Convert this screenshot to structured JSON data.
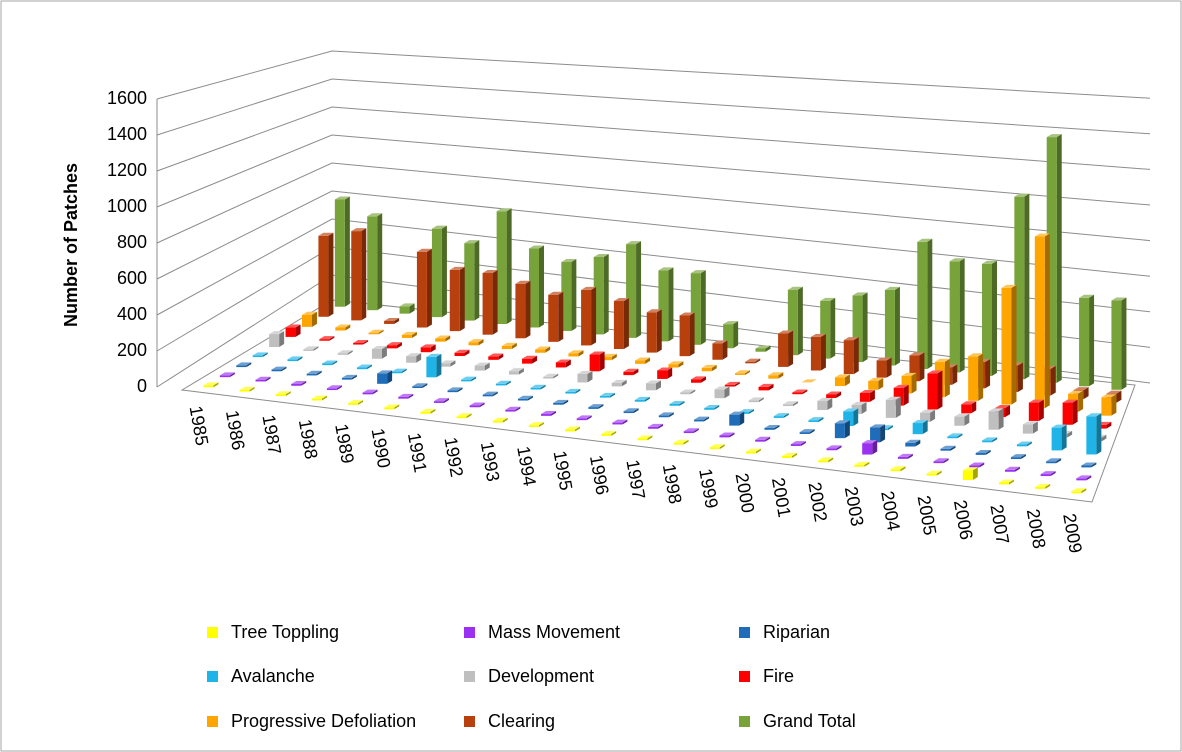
{
  "chart_data": {
    "type": "bar3d",
    "y_label": "Number of Patches",
    "categories": [
      "1985",
      "1986",
      "1987",
      "1988",
      "1989",
      "1990",
      "1991",
      "1992",
      "1993",
      "1994",
      "1995",
      "1996",
      "1997",
      "1998",
      "1999",
      "2000",
      "2001",
      "2002",
      "2003",
      "2004",
      "2005",
      "2006",
      "2007",
      "2008",
      "2009"
    ],
    "ylim": [
      0,
      1600
    ],
    "yticks": [
      0,
      200,
      400,
      600,
      800,
      1000,
      1200,
      1400,
      1600
    ],
    "grid": true,
    "series": [
      {
        "name": "Tree Toppling",
        "color": "#ffff00",
        "values": [
          10,
          10,
          10,
          10,
          10,
          10,
          10,
          10,
          10,
          10,
          10,
          10,
          10,
          10,
          10,
          10,
          10,
          10,
          10,
          10,
          10,
          50,
          10,
          10,
          10
        ]
      },
      {
        "name": "Mass Movement",
        "color": "#9b30f0",
        "values": [
          10,
          10,
          10,
          10,
          10,
          10,
          10,
          10,
          10,
          10,
          10,
          10,
          10,
          10,
          10,
          10,
          10,
          10,
          60,
          10,
          10,
          10,
          10,
          10,
          10
        ]
      },
      {
        "name": "Riparian",
        "color": "#1f6cb8",
        "values": [
          10,
          10,
          10,
          10,
          60,
          10,
          10,
          10,
          10,
          10,
          10,
          10,
          10,
          10,
          60,
          10,
          10,
          80,
          80,
          20,
          10,
          10,
          10,
          10,
          10
        ]
      },
      {
        "name": "Avalanche",
        "color": "#1fb4e8",
        "values": [
          10,
          10,
          10,
          10,
          10,
          120,
          10,
          10,
          10,
          10,
          10,
          10,
          10,
          10,
          10,
          10,
          10,
          80,
          10,
          60,
          10,
          10,
          10,
          120,
          200
        ]
      },
      {
        "name": "Development",
        "color": "#bfbfbf",
        "values": [
          80,
          10,
          10,
          60,
          40,
          20,
          30,
          20,
          10,
          50,
          20,
          40,
          10,
          50,
          10,
          10,
          50,
          50,
          100,
          50,
          50,
          100,
          50,
          20,
          20
        ]
      },
      {
        "name": "Fire",
        "color": "#ff0000",
        "values": [
          60,
          10,
          10,
          20,
          30,
          20,
          20,
          30,
          30,
          100,
          20,
          50,
          20,
          10,
          20,
          10,
          20,
          50,
          100,
          200,
          50,
          50,
          100,
          120,
          20
        ]
      },
      {
        "name": "Progressive Defoliation",
        "color": "#ffa500",
        "values": [
          80,
          20,
          10,
          20,
          20,
          20,
          20,
          20,
          20,
          20,
          20,
          20,
          20,
          10,
          20,
          0,
          50,
          50,
          100,
          200,
          250,
          650,
          950,
          100,
          100
        ]
      },
      {
        "name": "Clearing",
        "color": "#b8400c",
        "values": [
          550,
          600,
          20,
          500,
          400,
          400,
          350,
          300,
          350,
          300,
          250,
          250,
          100,
          10,
          200,
          200,
          200,
          100,
          150,
          100,
          150,
          150,
          150,
          50,
          50
        ]
      },
      {
        "name": "Grand Total",
        "color": "#77a33a",
        "values": [
          750,
          650,
          50,
          600,
          520,
          750,
          520,
          450,
          500,
          600,
          450,
          450,
          150,
          20,
          400,
          350,
          400,
          450,
          750,
          650,
          650,
          1050,
          1400,
          500,
          500
        ]
      }
    ]
  }
}
